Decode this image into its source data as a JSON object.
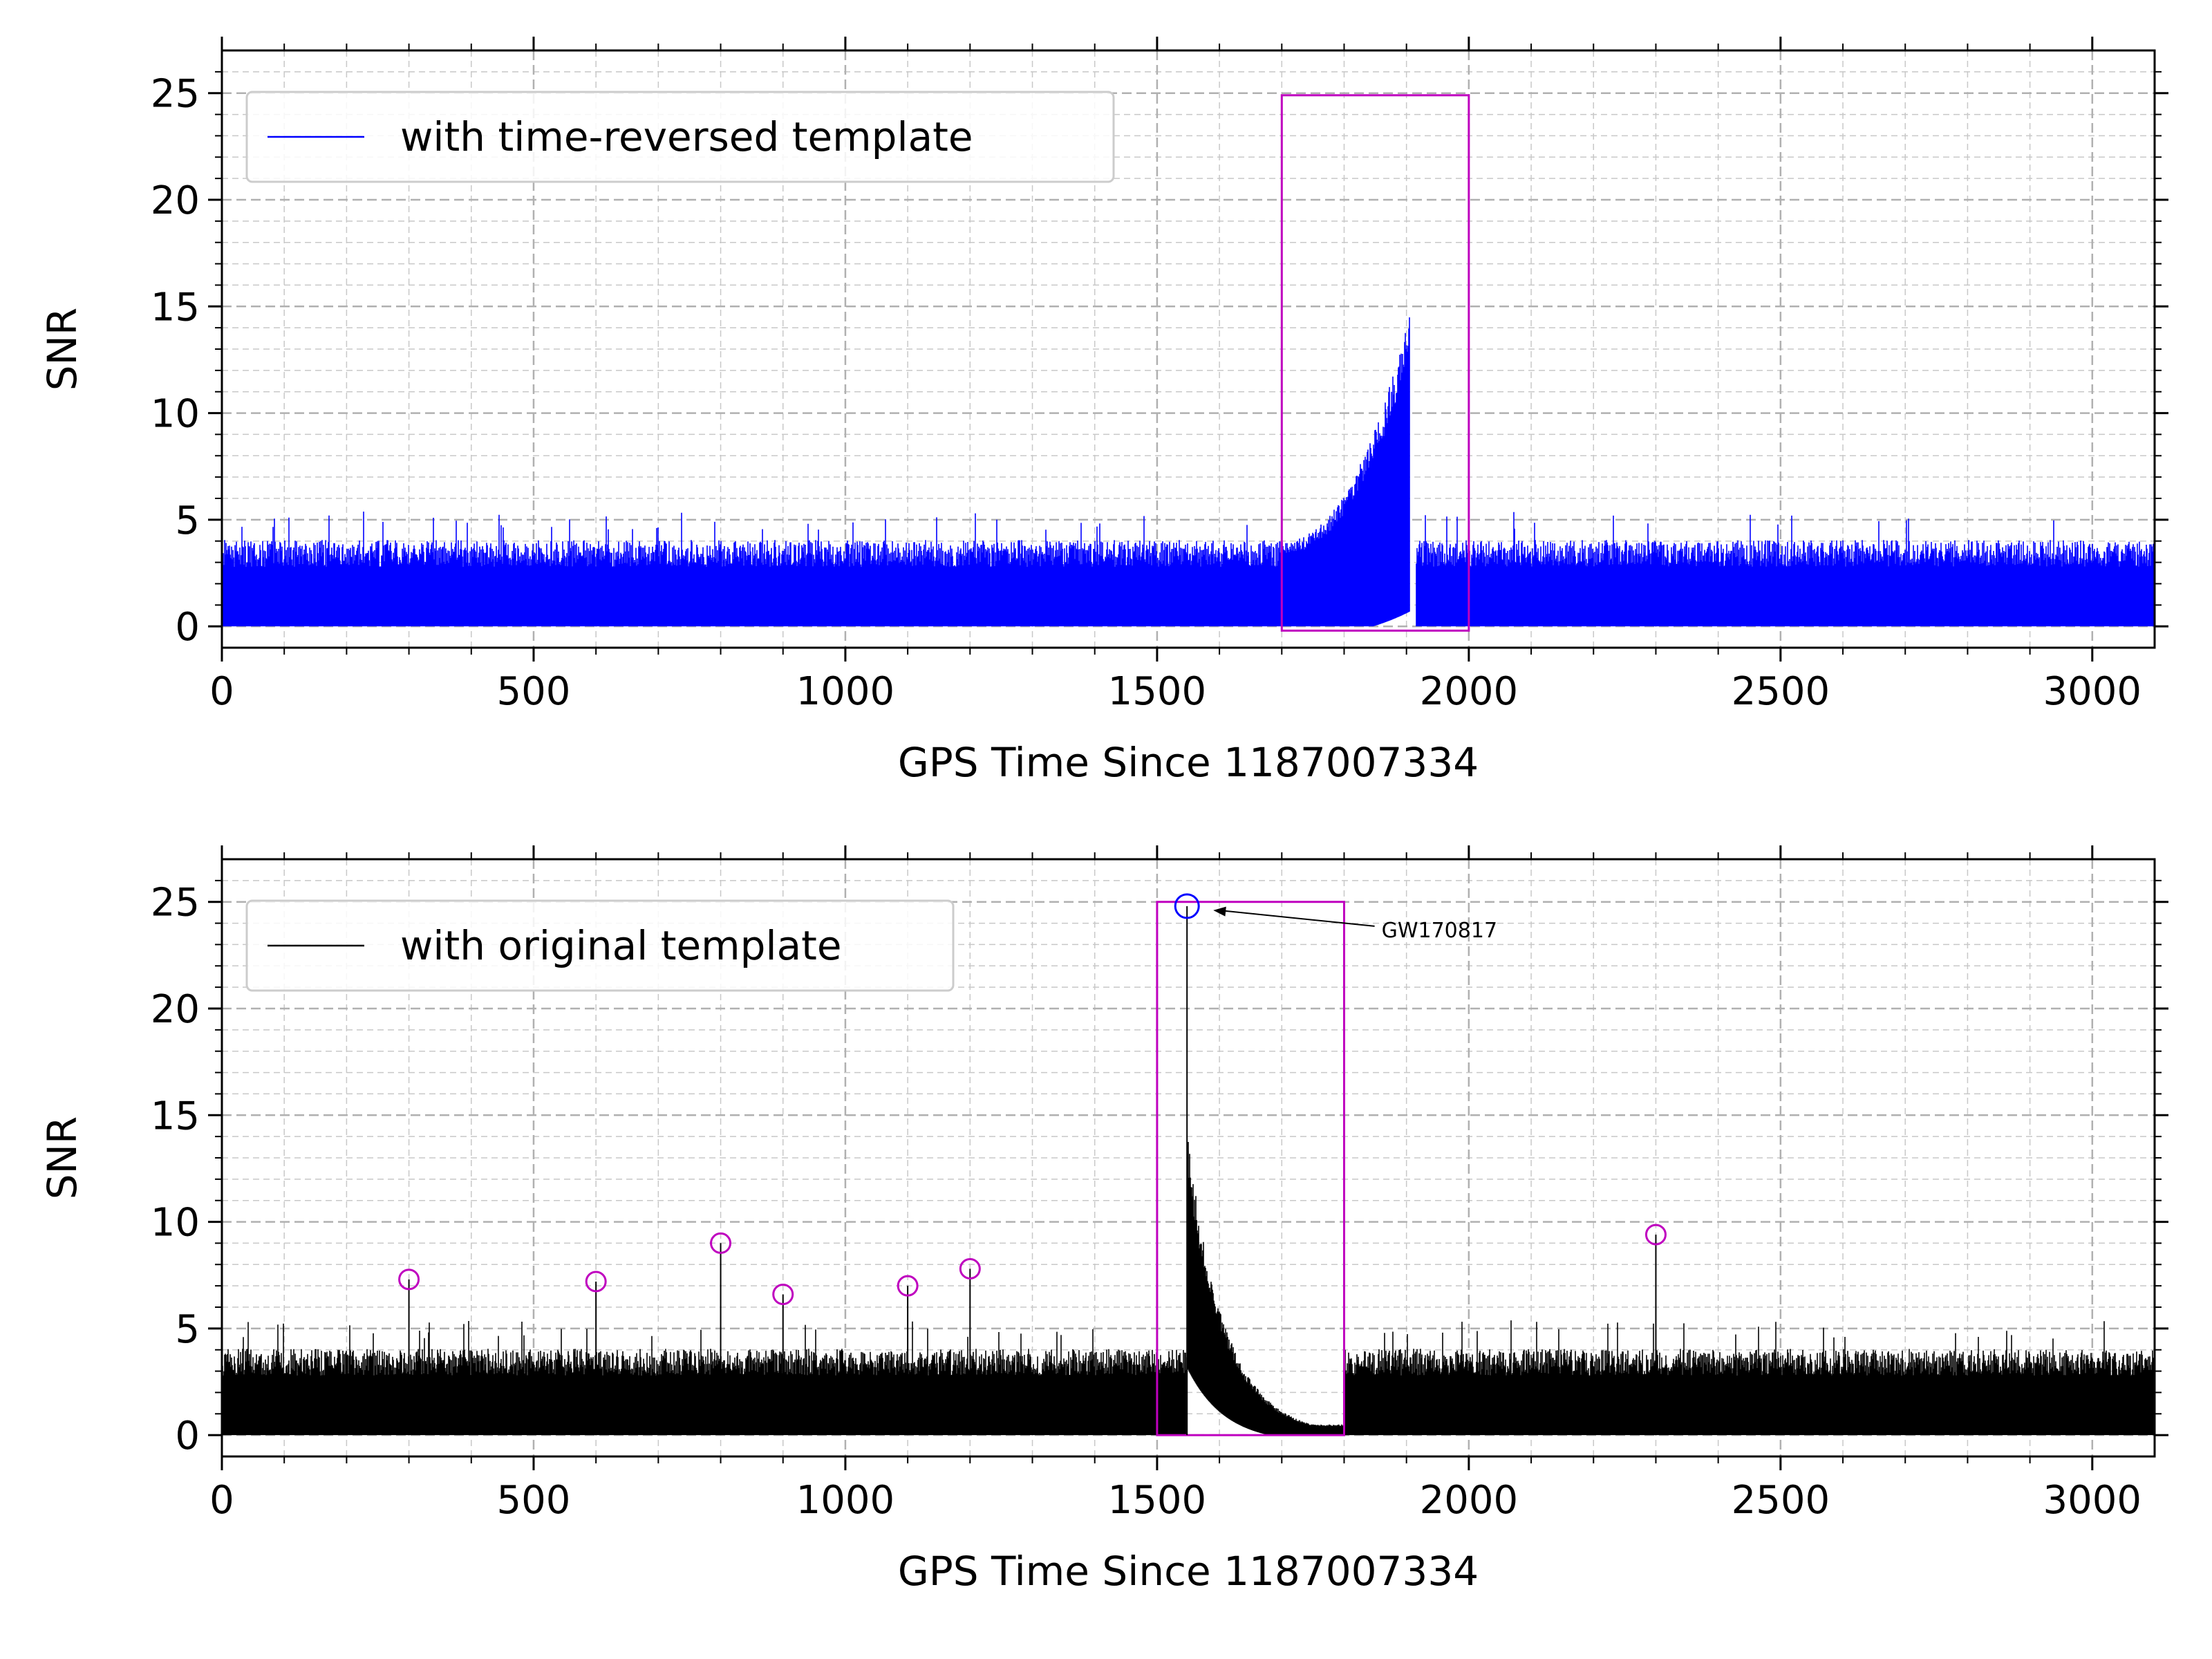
{
  "colors": {
    "top_series": "#0000ff",
    "bottom_series": "#000000",
    "window_box": "#bf00bf",
    "marker_magenta": "#bf00bf",
    "marker_blue": "#0000ff",
    "grid": "#c8c8c8"
  },
  "chart_data": [
    {
      "type": "line",
      "xlabel": "GPS Time Since 1187007334",
      "ylabel": "SNR",
      "xlim": [
        0,
        3100
      ],
      "ylim": [
        -1,
        27
      ],
      "xticks": [
        0,
        500,
        1000,
        1500,
        2000,
        2500,
        3000
      ],
      "yticks": [
        0,
        5,
        10,
        15,
        20,
        25
      ],
      "grid": true,
      "legend_position": "top-left",
      "series": [
        {
          "name": "with time-reversed template",
          "color": "#0000ff",
          "noise_ceiling": 4.5,
          "chirp": {
            "start": 1700,
            "end": 1905,
            "peak_snr": 14.6,
            "shape": "rising"
          }
        }
      ],
      "boxes": [
        {
          "x": [
            1700,
            2000
          ],
          "y": [
            -0.2,
            24.9
          ]
        }
      ],
      "markers": [],
      "annotations": []
    },
    {
      "type": "line",
      "xlabel": "GPS Time Since 1187007334",
      "ylabel": "SNR",
      "xlim": [
        0,
        3100
      ],
      "ylim": [
        -1,
        27
      ],
      "xticks": [
        0,
        500,
        1000,
        1500,
        2000,
        2500,
        3000
      ],
      "yticks": [
        0,
        5,
        10,
        15,
        20,
        25
      ],
      "grid": true,
      "legend_position": "top-left",
      "series": [
        {
          "name": "with original template",
          "color": "#000000",
          "noise_ceiling": 4.5,
          "chirp": {
            "start": 1548,
            "end": 1800,
            "peak_snr": 14.3,
            "shape": "decaying"
          }
        }
      ],
      "boxes": [
        {
          "x": [
            1500,
            1800
          ],
          "y": [
            0,
            25
          ]
        }
      ],
      "markers": [
        {
          "x": 300,
          "y": 7.3,
          "color": "#bf00bf"
        },
        {
          "x": 600,
          "y": 7.2,
          "color": "#bf00bf"
        },
        {
          "x": 800,
          "y": 9.0,
          "color": "#bf00bf"
        },
        {
          "x": 900,
          "y": 6.6,
          "color": "#bf00bf"
        },
        {
          "x": 1100,
          "y": 7.0,
          "color": "#bf00bf"
        },
        {
          "x": 1200,
          "y": 7.8,
          "color": "#bf00bf"
        },
        {
          "x": 2300,
          "y": 9.4,
          "color": "#bf00bf"
        },
        {
          "x": 1548,
          "y": 24.8,
          "color": "#0000ff",
          "large": true
        }
      ],
      "annotations": [
        {
          "text": "GW170817",
          "point": [
            1548,
            24.8
          ],
          "text_at": [
            1860,
            23.6
          ]
        }
      ]
    }
  ]
}
